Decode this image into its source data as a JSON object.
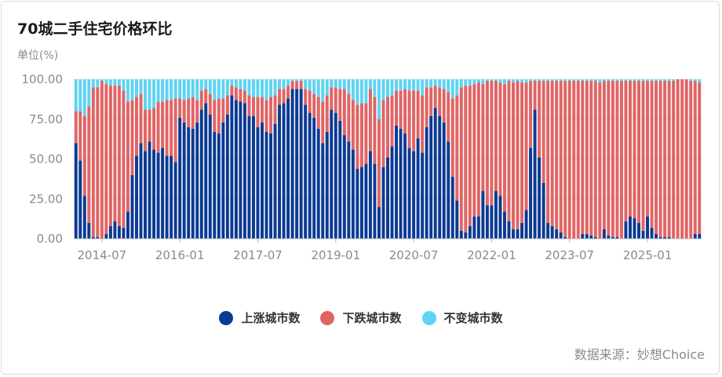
{
  "card": {
    "title": "70城二手住宅价格环比",
    "unit": "单位(%)",
    "source": "数据来源：妙想Choice"
  },
  "colors": {
    "up": "#0b3a93",
    "down": "#e06464",
    "flat": "#5fd3f3"
  },
  "legend": [
    {
      "label": "上涨城市数",
      "color": "#0b3a93"
    },
    {
      "label": "下跌城市数",
      "color": "#e06464"
    },
    {
      "label": "不变城市数",
      "color": "#5fd3f3"
    }
  ],
  "chart_data": {
    "type": "bar",
    "stacked": true,
    "x_start": "2014-01",
    "x_ticks": [
      "2014-07",
      "2016-01",
      "2017-07",
      "2019-01",
      "2020-07",
      "2022-01",
      "2023-07",
      "2025-01"
    ],
    "y_ticks": [
      "0.00",
      "25.00",
      "50.00",
      "75.00",
      "100.00"
    ],
    "ylim": [
      0,
      100
    ],
    "series": [
      {
        "name": "上涨城市数",
        "values": [
          60,
          49,
          27,
          10,
          1,
          1,
          0,
          3,
          8,
          11,
          8,
          7,
          17,
          40,
          52,
          60,
          55,
          61,
          56,
          54,
          57,
          52,
          52,
          48,
          76,
          73,
          70,
          69,
          73,
          81,
          85,
          78,
          67,
          66,
          73,
          78,
          90,
          87,
          86,
          85,
          77,
          77,
          70,
          73,
          67,
          66,
          72,
          84,
          85,
          88,
          94,
          94,
          94,
          84,
          79,
          76,
          69,
          60,
          67,
          81,
          79,
          74,
          65,
          61,
          56,
          44,
          45,
          47,
          55,
          47,
          20,
          45,
          51,
          58,
          71,
          69,
          66,
          57,
          55,
          63,
          54,
          70,
          77,
          82,
          77,
          73,
          61,
          39,
          24,
          5,
          4,
          8,
          14,
          14,
          30,
          21,
          21,
          30,
          27,
          17,
          11,
          6,
          6,
          10,
          18,
          57,
          81,
          51,
          35,
          10,
          8,
          6,
          4,
          1,
          0,
          0,
          0,
          3,
          3,
          2,
          1,
          0,
          6,
          2,
          1,
          1,
          0,
          11,
          14,
          13,
          10,
          5,
          14,
          7,
          3,
          1,
          1,
          1,
          0,
          0,
          0,
          0,
          0,
          3,
          3
        ]
      },
      {
        "name": "下跌城市数",
        "values": [
          20,
          31,
          50,
          73,
          94,
          94,
          99,
          94,
          88,
          85,
          88,
          86,
          69,
          47,
          37,
          31,
          26,
          20,
          26,
          32,
          29,
          35,
          35,
          40,
          12,
          14,
          18,
          20,
          14,
          12,
          9,
          13,
          20,
          22,
          15,
          12,
          6,
          8,
          8,
          8,
          13,
          12,
          19,
          16,
          20,
          23,
          18,
          10,
          9,
          8,
          5,
          5,
          5,
          10,
          14,
          15,
          20,
          26,
          23,
          14,
          16,
          20,
          29,
          30,
          31,
          40,
          40,
          38,
          39,
          42,
          55,
          42,
          38,
          32,
          22,
          24,
          28,
          36,
          38,
          30,
          36,
          25,
          18,
          14,
          18,
          21,
          31,
          49,
          66,
          90,
          92,
          88,
          83,
          84,
          67,
          78,
          78,
          69,
          71,
          80,
          88,
          92,
          93,
          88,
          80,
          42,
          18,
          48,
          64,
          89,
          91,
          93,
          95,
          98,
          99,
          99,
          99,
          96,
          96,
          97,
          98,
          98,
          93,
          97,
          98,
          98,
          99,
          88,
          85,
          86,
          89,
          94,
          85,
          92,
          96,
          98,
          98,
          98,
          99,
          100,
          100,
          100,
          99,
          96,
          95
        ]
      }
    ]
  }
}
